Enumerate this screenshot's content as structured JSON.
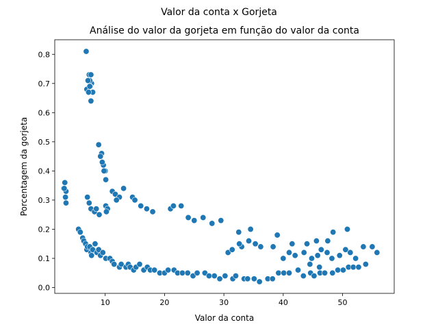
{
  "figure": {
    "suptitle": "Valor da conta x Gorjeta"
  },
  "chart_data": {
    "type": "scatter",
    "title": "Análise do valor da gorjeta em função do valor da conta",
    "xlabel": "Valor da conta",
    "ylabel": "Porcentagem da gorjeta",
    "xlim": [
      1.5,
      58.7
    ],
    "ylim": [
      -0.02,
      0.85
    ],
    "xticks": [
      10,
      20,
      30,
      40,
      50
    ],
    "yticks": [
      0.0,
      0.1,
      0.2,
      0.3,
      0.4,
      0.5,
      0.6,
      0.7,
      0.8
    ],
    "ytick_labels": [
      "0.0",
      "0.1",
      "0.2",
      "0.3",
      "0.4",
      "0.5",
      "0.6",
      "0.7",
      "0.8"
    ],
    "grid": false,
    "legend": "none",
    "marker_color": "#1f77b4",
    "marker_edge": "#ffffff",
    "series": [
      {
        "x": [
          6.8,
          7.3,
          7.6,
          7.7,
          7.4,
          7.1,
          6.9,
          7.9,
          7.6,
          7.5,
          7.4,
          7.2,
          3.0,
          3.2,
          3.4,
          3.1,
          3.3,
          3.4,
          8.9,
          9.4,
          9.7,
          9.2,
          9.5,
          10.0,
          9.8,
          10.1,
          7.0,
          7.3,
          7.6,
          8.2,
          8.5,
          9.0,
          10.1,
          10.4,
          10.2,
          11.2,
          11.7,
          13.1,
          12.4,
          11.9,
          14.6,
          15.0,
          16.0,
          17.0,
          18.0,
          21.0,
          21.5,
          22.8,
          24.0,
          25.0,
          26.5,
          28.0,
          29.5,
          32.5,
          34.5,
          39.0,
          41.5,
          44.0,
          45.6,
          47.5,
          48.4,
          50.8,
          53.5,
          55.0,
          55.8,
          5.5,
          5.8,
          6.2,
          6.4,
          6.7,
          6.9,
          7.0,
          7.4,
          7.6,
          7.9,
          7.7,
          8.3,
          8.6,
          8.9,
          9.2,
          9.6,
          10.1,
          10.8,
          11.2,
          11.5,
          12.4,
          12.7,
          13.5,
          13.9,
          14.2,
          14.8,
          15.2,
          15.8,
          16.5,
          17.1,
          17.6,
          18.3,
          19.2,
          20.0,
          20.6,
          21.6,
          22.2,
          23.0,
          23.9,
          24.8,
          25.5,
          26.8,
          27.5,
          28.4,
          29.3,
          30.2,
          31.5,
          32.0,
          33.4,
          34.0,
          35.1,
          36.0,
          37.4,
          38.2,
          39.2,
          40.1,
          41.0,
          42.5,
          43.4,
          44.6,
          45.2,
          46.2,
          47.0,
          48.3,
          49.2,
          50.1,
          51.0,
          51.8,
          52.7,
          53.9,
          40.0,
          41.0,
          42.0,
          43.5,
          44.8,
          45.8,
          46.4,
          47.4,
          48.2,
          49.5,
          50.5,
          51.3,
          52.2,
          33.0,
          34.2,
          35.3,
          36.2,
          30.7,
          31.4,
          32.6,
          38.3,
          44.5,
          46.1
        ],
        "y": [
          0.81,
          0.73,
          0.73,
          0.7,
          0.71,
          0.71,
          0.68,
          0.67,
          0.64,
          0.69,
          0.69,
          0.67,
          0.34,
          0.36,
          0.33,
          0.34,
          0.31,
          0.29,
          0.49,
          0.46,
          0.42,
          0.45,
          0.43,
          0.4,
          0.4,
          0.37,
          0.31,
          0.29,
          0.27,
          0.26,
          0.27,
          0.25,
          0.28,
          0.27,
          0.26,
          0.33,
          0.32,
          0.34,
          0.31,
          0.3,
          0.31,
          0.3,
          0.28,
          0.27,
          0.26,
          0.27,
          0.28,
          0.28,
          0.24,
          0.23,
          0.24,
          0.22,
          0.23,
          0.19,
          0.2,
          0.18,
          0.15,
          0.15,
          0.16,
          0.16,
          0.19,
          0.2,
          0.14,
          0.14,
          0.12,
          0.2,
          0.19,
          0.17,
          0.16,
          0.15,
          0.13,
          0.14,
          0.14,
          0.12,
          0.13,
          0.11,
          0.15,
          0.12,
          0.13,
          0.11,
          0.12,
          0.1,
          0.1,
          0.09,
          0.08,
          0.07,
          0.08,
          0.07,
          0.08,
          0.07,
          0.06,
          0.07,
          0.08,
          0.06,
          0.07,
          0.06,
          0.06,
          0.05,
          0.05,
          0.06,
          0.06,
          0.05,
          0.05,
          0.05,
          0.04,
          0.05,
          0.05,
          0.04,
          0.04,
          0.03,
          0.04,
          0.03,
          0.04,
          0.03,
          0.03,
          0.03,
          0.02,
          0.03,
          0.03,
          0.05,
          0.05,
          0.05,
          0.06,
          0.04,
          0.05,
          0.04,
          0.05,
          0.05,
          0.05,
          0.06,
          0.06,
          0.07,
          0.07,
          0.07,
          0.08,
          0.1,
          0.12,
          0.11,
          0.12,
          0.1,
          0.11,
          0.13,
          0.12,
          0.1,
          0.11,
          0.13,
          0.12,
          0.1,
          0.14,
          0.16,
          0.15,
          0.14,
          0.12,
          0.13,
          0.15,
          0.14,
          0.08,
          0.07
        ]
      }
    ]
  }
}
